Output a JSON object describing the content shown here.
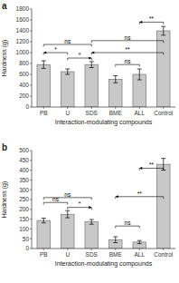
{
  "chart_data": [
    {
      "type": "bar",
      "title": "a",
      "categories": [
        "PB",
        "U",
        "SDS",
        "BME",
        "ALL",
        "Control"
      ],
      "values": [
        780,
        650,
        780,
        510,
        600,
        1400
      ],
      "errors": [
        70,
        50,
        55,
        65,
        100,
        80
      ],
      "color": "#c8c8c8",
      "ylim": [
        0,
        1800
      ],
      "yticks": [
        0,
        200,
        400,
        600,
        800,
        1000,
        1200,
        1400,
        1600,
        1800
      ],
      "ylabel": "Hardness (g)",
      "xlabel": "Interaction-modulating compounds",
      "grid": false,
      "annotations": [
        {
          "text": "*",
          "from": "PB",
          "to": "U",
          "y": 1000,
          "arrow": "left"
        },
        {
          "text": "*",
          "from": "U",
          "to": "SDS",
          "y": 900,
          "arrow": "right"
        },
        {
          "text": "ns",
          "from": "PB",
          "to": "SDS",
          "y": 1150
        },
        {
          "text": "**",
          "from": "SDS",
          "to": "Control",
          "y": 1000,
          "arrow": "left"
        },
        {
          "text": "ns",
          "from": "SDS",
          "to": "Control",
          "y": 1220
        },
        {
          "text": "ns",
          "from": "BME",
          "to": "ALL",
          "y": 780
        },
        {
          "text": "**",
          "from": "ALL",
          "to": "Control",
          "y": 1560,
          "arrow": "left"
        }
      ]
    },
    {
      "type": "bar",
      "title": "b",
      "categories": [
        "PB",
        "U",
        "SDS",
        "BME",
        "ALL",
        "Control"
      ],
      "values": [
        143,
        175,
        136,
        45,
        33,
        430
      ],
      "errors": [
        12,
        18,
        12,
        15,
        8,
        30
      ],
      "color": "#c8c8c8",
      "ylim": [
        0,
        500
      ],
      "yticks": [
        0,
        50,
        100,
        150,
        200,
        250,
        300,
        350,
        400,
        450,
        500
      ],
      "ylabel": "Hardness (g)",
      "xlabel": "Interaction-modulating compounds",
      "grid": false,
      "annotations": [
        {
          "text": "ns",
          "from": "PB",
          "to": "U",
          "y": 235
        },
        {
          "text": "*",
          "from": "U",
          "to": "SDS",
          "y": 210,
          "arrow": "right"
        },
        {
          "text": "ns",
          "from": "PB",
          "to": "SDS",
          "y": 260
        },
        {
          "text": "**",
          "from": "BME",
          "to": "Control",
          "y": 265,
          "arrow": "left"
        },
        {
          "text": "ns",
          "from": "BME",
          "to": "ALL",
          "y": 115
        },
        {
          "text": "**",
          "from": "ALL",
          "to": "Control",
          "y": 410,
          "arrow": "left"
        }
      ]
    }
  ]
}
